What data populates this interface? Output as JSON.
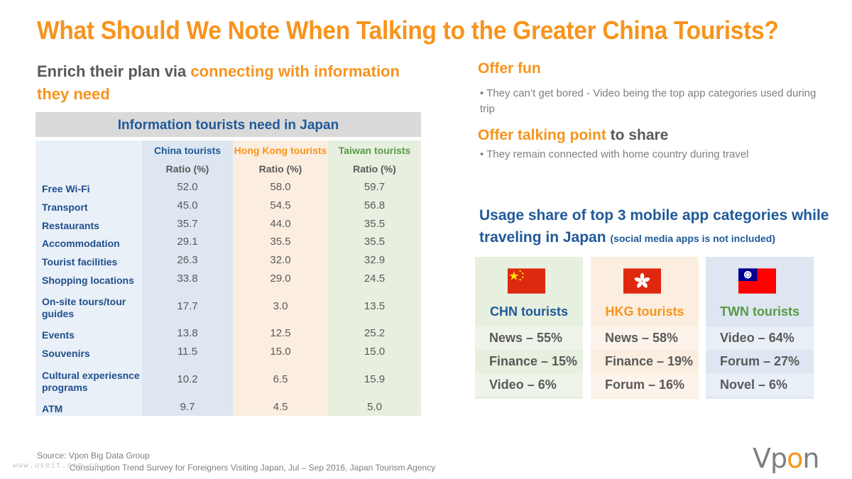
{
  "title": "What Should We Note When Talking to the Greater China Tourists?",
  "subhead": {
    "prefix": "Enrich their plan via ",
    "highlight": "connecting with information they need"
  },
  "table": {
    "title": "Information tourists need in Japan",
    "columns": [
      "China tourists",
      "Hong Kong tourists",
      "Taiwan tourists"
    ],
    "subheader": "Ratio (%)",
    "rows": [
      {
        "label": "Free Wi-Fi",
        "values": [
          "52.0",
          "58.0",
          "59.7"
        ]
      },
      {
        "label": "Transport",
        "values": [
          "45.0",
          "54.5",
          "56.8"
        ]
      },
      {
        "label": "Restaurants",
        "values": [
          "35.7",
          "44.0",
          "35.5"
        ]
      },
      {
        "label": "Accommodation",
        "values": [
          "29.1",
          "35.5",
          "35.5"
        ]
      },
      {
        "label": "Tourist facilities",
        "values": [
          "26.3",
          "32.0",
          "32.9"
        ]
      },
      {
        "label": "Shopping locations",
        "values": [
          "33.8",
          "29.0",
          "24.5"
        ]
      },
      {
        "label": "On-site tours/tour guides",
        "values": [
          "17.7",
          "3.0",
          "13.5"
        ]
      },
      {
        "label": "Events",
        "values": [
          "13.8",
          "12.5",
          "25.2"
        ]
      },
      {
        "label": "Souvenirs",
        "values": [
          "11.5",
          "15.0",
          "15.0"
        ]
      },
      {
        "label": "Cultural experiesnce programs",
        "values": [
          "10.2",
          "6.5",
          "15.9"
        ]
      },
      {
        "label": "ATM",
        "values": [
          "9.7",
          "4.5",
          "5.0"
        ]
      }
    ]
  },
  "offer_fun": {
    "heading": "Offer fun",
    "bullet": "• They can’t get bored -  Video being the top app categories used during trip"
  },
  "offer_talk": {
    "heading_highlight": "Offer talking point",
    "heading_rest": " to share",
    "bullet": "• They remain connected with home country during travel"
  },
  "usage": {
    "title": "Usage share of top 3 mobile app categories while traveling in Japan",
    "note": "(social media apps is not included)",
    "cards": [
      {
        "name": "CHN tourists",
        "flag": "china-flag",
        "items": [
          "News – 55%",
          "Finance – 15%",
          "Video – 6%"
        ]
      },
      {
        "name": "HKG tourists",
        "flag": "hong-kong-flag",
        "items": [
          "News – 58%",
          "Finance – 19%",
          "Forum – 16%"
        ]
      },
      {
        "name": "TWN tourists",
        "flag": "taiwan-flag",
        "items": [
          "Video – 64%",
          "Forum – 27%",
          "Novel – 6%"
        ]
      }
    ]
  },
  "source": {
    "line1": "Source: Vpon Big Data Group",
    "line2": "Consumption Trend Survey for Foreigners Visiting Japan, Jul – Sep 2016, Japan Tourism Agency"
  },
  "watermark": "www.useit.com.cn",
  "logo": {
    "part1": "Vp",
    "part2": "o",
    "part3": "n"
  },
  "colors": {
    "orange": "#f7941d",
    "blue": "#1f5a99",
    "green": "#5a9a47",
    "gray": "#595959"
  }
}
